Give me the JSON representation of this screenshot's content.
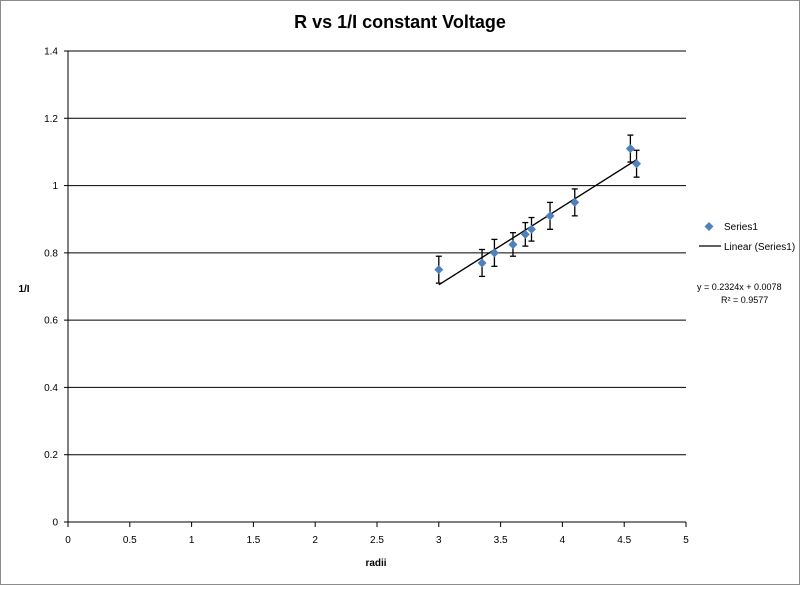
{
  "chart_data": {
    "type": "scatter",
    "title": "R vs 1/I constant Voltage",
    "xlabel": "radii",
    "ylabel": "1/I",
    "xlim": [
      0,
      5
    ],
    "ylim": [
      0,
      1.4
    ],
    "x_ticks": [
      "0",
      "0.5",
      "1",
      "1.5",
      "2",
      "2.5",
      "3",
      "3.5",
      "4",
      "4.5",
      "5"
    ],
    "y_ticks": [
      "0",
      "0.2",
      "0.4",
      "0.6",
      "0.8",
      "1",
      "1.2",
      "1.4"
    ],
    "grid": "horizontal",
    "legend_position": "right",
    "colors": {
      "marker": "#4f81bd",
      "trendline": "#000000",
      "gridline": "#000000",
      "error_bar": "#000000"
    },
    "series": [
      {
        "name": "Series1",
        "x": [
          3.0,
          3.35,
          3.45,
          3.6,
          3.7,
          3.75,
          3.9,
          4.1,
          4.55,
          4.6
        ],
        "y": [
          0.75,
          0.77,
          0.8,
          0.825,
          0.855,
          0.87,
          0.91,
          0.95,
          1.11,
          1.065
        ],
        "y_error": [
          0.04,
          0.04,
          0.04,
          0.035,
          0.035,
          0.035,
          0.04,
          0.04,
          0.04,
          0.04
        ]
      }
    ],
    "trendline": {
      "name": "Linear (Series1)",
      "type": "linear",
      "slope": 0.2324,
      "intercept": 0.0078,
      "x_range": [
        3.0,
        4.6
      ],
      "equation": "y = 0.2324x + 0.0078",
      "r_squared": "R² = 0.9577"
    }
  }
}
